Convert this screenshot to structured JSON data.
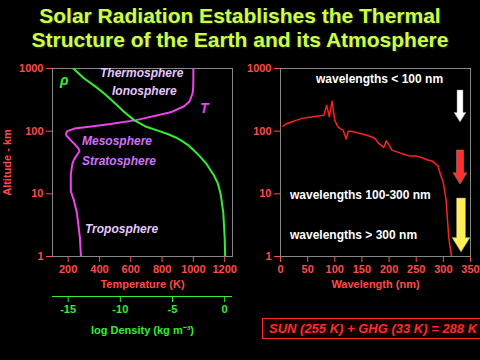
{
  "chart_data": [
    {
      "type": "line",
      "title": "Solar Radiation Establishes the Thermal Structure of the Earth and its Atmosphere",
      "xlabel": "Temperature (K)",
      "ylabel": "Altitude - km",
      "xlim": [
        100,
        1250
      ],
      "xticks": [
        200,
        400,
        600,
        800,
        1000,
        1200
      ],
      "ylim": [
        1,
        1000
      ],
      "yticks": [
        1,
        10,
        100,
        1000
      ],
      "log": "y",
      "x2label": "log Density (kg m⁻³)",
      "x2lim": [
        -16.5,
        0.75
      ],
      "x2ticks": [
        -15,
        -10,
        -5,
        0
      ],
      "annotations": [
        "Thermosphere",
        "Ionosphere",
        "Mesosphere",
        "Stratosphere",
        "Troposphere"
      ],
      "series": [
        {
          "name": "T",
          "color": "#ee44ee",
          "y": [
            1,
            2,
            5,
            8,
            11,
            15,
            20,
            25,
            30,
            35,
            40,
            47,
            50,
            55,
            60,
            70,
            80,
            85,
            90,
            95,
            100,
            110,
            120,
            130,
            150,
            200,
            250,
            300,
            400,
            500,
            700,
            1000
          ],
          "x": [
            282,
            275,
            256,
            236,
            217,
            217,
            217,
            222,
            227,
            237,
            251,
            271,
            271,
            260,
            247,
            220,
            199,
            189,
            187,
            189,
            195,
            240,
            360,
            470,
            634,
            855,
            941,
            976,
            995,
            999,
            1000,
            1000
          ]
        },
        {
          "name": "ρ",
          "color": "#33ee33",
          "axis": "x2",
          "y": [
            1,
            2,
            5,
            10,
            15,
            20,
            30,
            40,
            50,
            60,
            70,
            80,
            90,
            100,
            120,
            150,
            200,
            300,
            400,
            500,
            700,
            1000
          ],
          "x": [
            0.05,
            0,
            -0.13,
            -0.39,
            -0.68,
            -1.05,
            -1.74,
            -2.4,
            -2.99,
            -3.51,
            -4.1,
            -4.74,
            -5.46,
            -6.26,
            -7.65,
            -8.68,
            -9.6,
            -10.72,
            -11.55,
            -12.28,
            -13.49,
            -14.5
          ]
        }
      ]
    },
    {
      "type": "line",
      "xlabel": "Wavelength (nm)",
      "xlim": [
        0,
        350
      ],
      "xticks": [
        0,
        50,
        100,
        150,
        200,
        250,
        300,
        350
      ],
      "ylim": [
        1,
        1000
      ],
      "yticks": [
        1,
        10,
        100,
        1000
      ],
      "log": "y",
      "color": "#ff2020",
      "x": [
        5,
        10,
        20,
        30,
        40,
        50,
        60,
        70,
        80,
        85,
        90,
        95,
        100,
        105,
        110,
        115,
        121,
        125,
        130,
        140,
        150,
        160,
        170,
        175,
        180,
        185,
        190,
        195,
        200,
        205,
        210,
        220,
        230,
        240,
        250,
        260,
        270,
        280,
        290,
        295,
        300,
        305,
        310,
        315
      ],
      "values": [
        120,
        130,
        140,
        150,
        160,
        165,
        170,
        175,
        180,
        260,
        170,
        300,
        150,
        120,
        110,
        105,
        75,
        100,
        100,
        95,
        90,
        85,
        80,
        75,
        65,
        60,
        55,
        70,
        60,
        50,
        48,
        45,
        42,
        40,
        40,
        38,
        35,
        33,
        28,
        20,
        15,
        8,
        2,
        1
      ],
      "annotations": [
        "wavelengths < 100 nm",
        "wavelengths 100-300 nm",
        "wavelengths > 300 nm"
      ],
      "caption": "SUN (255 K) + GHG (33 K) = 288 K"
    }
  ]
}
